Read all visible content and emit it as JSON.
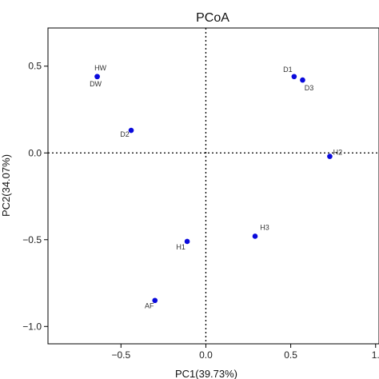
{
  "chart_data": {
    "type": "scatter",
    "title": "PCoA",
    "xlabel": "PC1(39.73%)",
    "ylabel": "PC2(34.07%)",
    "xlim": [
      -0.93,
      1.02
    ],
    "ylim": [
      -1.1,
      0.72
    ],
    "xticks": [
      -0.5,
      0.0,
      0.5,
      1.0
    ],
    "xtick_labels": [
      "−0.5",
      "0.0",
      "0.5",
      "1."
    ],
    "yticks": [
      -1.0,
      -0.5,
      0.0,
      0.5
    ],
    "ytick_labels": [
      "−1.0",
      "−0.5",
      "0.0",
      "0.5"
    ],
    "reference_lines": {
      "x": 0,
      "y": 0,
      "style": "dotted"
    },
    "grid": false,
    "point_color": "#0a0adc",
    "points": [
      {
        "label": "HW",
        "x": -0.64,
        "y": 0.44
      },
      {
        "label": "DW",
        "x": -0.64,
        "y": 0.44
      },
      {
        "label": "D2",
        "x": -0.44,
        "y": 0.13
      },
      {
        "label": "D1",
        "x": 0.52,
        "y": 0.44
      },
      {
        "label": "D3",
        "x": 0.57,
        "y": 0.42
      },
      {
        "label": "H2",
        "x": 0.73,
        "y": -0.02
      },
      {
        "label": "H3",
        "x": 0.29,
        "y": -0.48
      },
      {
        "label": "H1",
        "x": -0.11,
        "y": -0.51
      },
      {
        "label": "AF",
        "x": -0.3,
        "y": -0.85
      }
    ]
  }
}
